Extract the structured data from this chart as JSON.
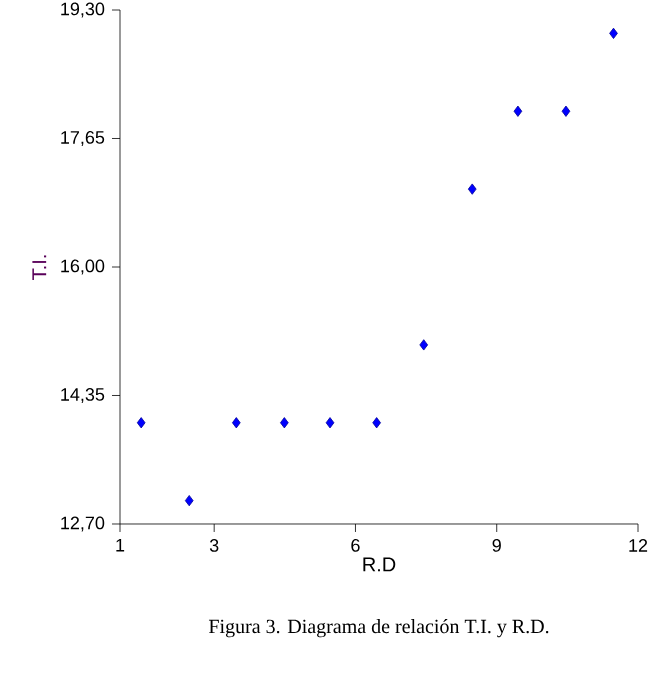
{
  "chart_data": {
    "type": "scatter",
    "xlabel": "R.D",
    "ylabel": "T.I.",
    "x": [
      1.45,
      2.47,
      3.47,
      4.49,
      5.46,
      6.45,
      7.45,
      8.48,
      9.45,
      10.47,
      11.48
    ],
    "values": [
      14.0,
      13.0,
      14.0,
      14.0,
      14.0,
      14.0,
      15.0,
      17.0,
      18.0,
      18.0,
      19.0
    ],
    "color": "#0000ff",
    "marker": "diamond",
    "grid": false,
    "xlim": [
      1,
      12
    ],
    "ylim": [
      12.7,
      19.3
    ],
    "xticks": [
      1,
      3,
      6,
      9,
      12
    ],
    "yticks": [
      {
        "value": 12.7,
        "label": "12,70"
      },
      {
        "value": 14.35,
        "label": "14,35"
      },
      {
        "value": 16.0,
        "label": "16,00"
      },
      {
        "value": 17.65,
        "label": "17,65"
      },
      {
        "value": 19.3,
        "label": "19,30"
      }
    ],
    "annotations": [
      "Figura 3. Diagrama de relación T.I. y R.D."
    ]
  }
}
